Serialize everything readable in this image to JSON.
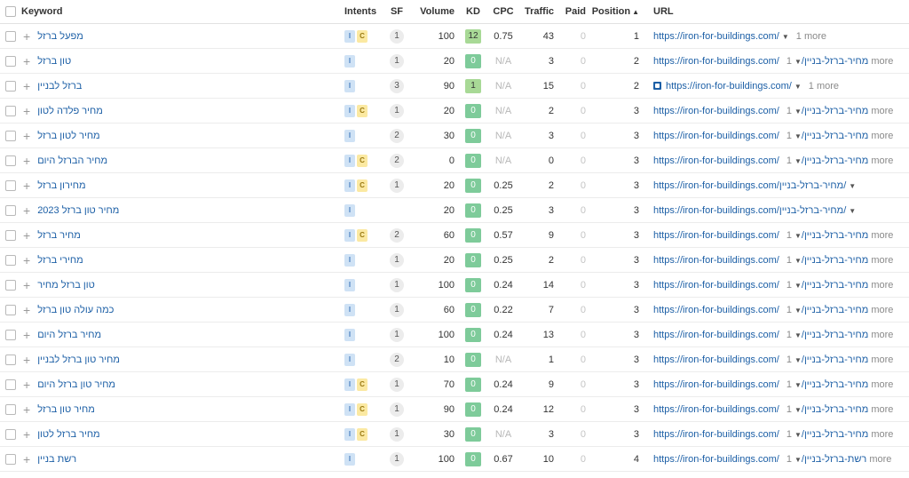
{
  "columns": {
    "keyword": "Keyword",
    "intents": "Intents",
    "sf": "SF",
    "volume": "Volume",
    "kd": "KD",
    "cpc": "CPC",
    "traffic": "Traffic",
    "paid": "Paid",
    "position": "Position",
    "url": "URL"
  },
  "sort_indicator": "▲",
  "colors": {
    "link": "#1c5fa6",
    "kd_green": "#7ecb9a",
    "intent_informational": "#cfe2f5",
    "intent_commercial": "#fbe9a2"
  },
  "rows": [
    {
      "keyword": "מפעל ברזל",
      "intents": [
        "I",
        "C"
      ],
      "sf": "1",
      "volume": "100",
      "kd": "12",
      "cpc": "0.75",
      "traffic": "43",
      "paid": "0",
      "position": "1",
      "url": "https://iron-for-buildings.com/",
      "more": "1 more",
      "icon": false
    },
    {
      "keyword": "טון ברזל",
      "intents": [
        "I"
      ],
      "sf": "1",
      "volume": "20",
      "kd": "0",
      "cpc": "N/A",
      "traffic": "3",
      "paid": "0",
      "position": "2",
      "url": "https://iron-for-buildings.com/מחיר-ברזל-בניין/",
      "more": "1 more",
      "icon": false
    },
    {
      "keyword": "ברזל לבניין",
      "intents": [
        "I"
      ],
      "sf": "3",
      "volume": "90",
      "kd": "1",
      "cpc": "N/A",
      "traffic": "15",
      "paid": "0",
      "position": "2",
      "url": "https://iron-for-buildings.com/",
      "more": "1 more",
      "icon": true
    },
    {
      "keyword": "מחיר פלדה לטון",
      "intents": [
        "I",
        "C"
      ],
      "sf": "1",
      "volume": "20",
      "kd": "0",
      "cpc": "N/A",
      "traffic": "2",
      "paid": "0",
      "position": "3",
      "url": "https://iron-for-buildings.com/מחיר-ברזל-בניין/",
      "more": "1 more",
      "icon": false
    },
    {
      "keyword": "מחיר לטון ברזל",
      "intents": [
        "I"
      ],
      "sf": "2",
      "volume": "30",
      "kd": "0",
      "cpc": "N/A",
      "traffic": "3",
      "paid": "0",
      "position": "3",
      "url": "https://iron-for-buildings.com/מחיר-ברזל-בניין/",
      "more": "1 more",
      "icon": false
    },
    {
      "keyword": "מחיר הברזל היום",
      "intents": [
        "I",
        "C"
      ],
      "sf": "2",
      "volume": "0",
      "kd": "0",
      "cpc": "N/A",
      "traffic": "0",
      "paid": "0",
      "position": "3",
      "url": "https://iron-for-buildings.com/מחיר-ברזל-בניין/",
      "more": "1 more",
      "icon": false
    },
    {
      "keyword": "מחירון ברזל",
      "intents": [
        "I",
        "C"
      ],
      "sf": "1",
      "volume": "20",
      "kd": "0",
      "cpc": "0.25",
      "traffic": "2",
      "paid": "0",
      "position": "3",
      "url": "https://iron-for-buildings.com/מחיר-ברזל-בניין/",
      "more": "",
      "icon": false
    },
    {
      "keyword": "מחיר טון ברזל 2023",
      "intents": [
        "I"
      ],
      "sf": "",
      "volume": "20",
      "kd": "0",
      "cpc": "0.25",
      "traffic": "3",
      "paid": "0",
      "position": "3",
      "url": "https://iron-for-buildings.com/מחיר-ברזל-בניין/",
      "more": "",
      "icon": false
    },
    {
      "keyword": "מחיר ברזל",
      "intents": [
        "I",
        "C"
      ],
      "sf": "2",
      "volume": "60",
      "kd": "0",
      "cpc": "0.57",
      "traffic": "9",
      "paid": "0",
      "position": "3",
      "url": "https://iron-for-buildings.com/מחיר-ברזל-בניין/",
      "more": "1 more",
      "icon": false
    },
    {
      "keyword": "מחירי ברזל",
      "intents": [
        "I"
      ],
      "sf": "1",
      "volume": "20",
      "kd": "0",
      "cpc": "0.25",
      "traffic": "2",
      "paid": "0",
      "position": "3",
      "url": "https://iron-for-buildings.com/מחיר-ברזל-בניין/",
      "more": "1 more",
      "icon": false
    },
    {
      "keyword": "טון ברזל מחיר",
      "intents": [
        "I"
      ],
      "sf": "1",
      "volume": "100",
      "kd": "0",
      "cpc": "0.24",
      "traffic": "14",
      "paid": "0",
      "position": "3",
      "url": "https://iron-for-buildings.com/מחיר-ברזל-בניין/",
      "more": "1 more",
      "icon": false
    },
    {
      "keyword": "כמה עולה טון ברזל",
      "intents": [
        "I"
      ],
      "sf": "1",
      "volume": "60",
      "kd": "0",
      "cpc": "0.22",
      "traffic": "7",
      "paid": "0",
      "position": "3",
      "url": "https://iron-for-buildings.com/מחיר-ברזל-בניין/",
      "more": "1 more",
      "icon": false
    },
    {
      "keyword": "מחיר ברזל היום",
      "intents": [
        "I"
      ],
      "sf": "1",
      "volume": "100",
      "kd": "0",
      "cpc": "0.24",
      "traffic": "13",
      "paid": "0",
      "position": "3",
      "url": "https://iron-for-buildings.com/מחיר-ברזל-בניין/",
      "more": "1 more",
      "icon": false
    },
    {
      "keyword": "מחיר טון ברזל לבניין",
      "intents": [
        "I"
      ],
      "sf": "2",
      "volume": "10",
      "kd": "0",
      "cpc": "N/A",
      "traffic": "1",
      "paid": "0",
      "position": "3",
      "url": "https://iron-for-buildings.com/מחיר-ברזל-בניין/",
      "more": "1 more",
      "icon": false
    },
    {
      "keyword": "מחיר טון ברזל היום",
      "intents": [
        "I",
        "C"
      ],
      "sf": "1",
      "volume": "70",
      "kd": "0",
      "cpc": "0.24",
      "traffic": "9",
      "paid": "0",
      "position": "3",
      "url": "https://iron-for-buildings.com/מחיר-ברזל-בניין/",
      "more": "1 more",
      "icon": false
    },
    {
      "keyword": "מחיר טון ברזל",
      "intents": [
        "I",
        "C"
      ],
      "sf": "1",
      "volume": "90",
      "kd": "0",
      "cpc": "0.24",
      "traffic": "12",
      "paid": "0",
      "position": "3",
      "url": "https://iron-for-buildings.com/מחיר-ברזל-בניין/",
      "more": "1 more",
      "icon": false
    },
    {
      "keyword": "מחיר ברזל לטון",
      "intents": [
        "I",
        "C"
      ],
      "sf": "1",
      "volume": "30",
      "kd": "0",
      "cpc": "N/A",
      "traffic": "3",
      "paid": "0",
      "position": "3",
      "url": "https://iron-for-buildings.com/מחיר-ברזל-בניין/",
      "more": "1 more",
      "icon": false
    },
    {
      "keyword": "רשת בניין",
      "intents": [
        "I"
      ],
      "sf": "1",
      "volume": "100",
      "kd": "0",
      "cpc": "0.67",
      "traffic": "10",
      "paid": "0",
      "position": "4",
      "url": "https://iron-for-buildings.com/רשת-ברזל-בניין/",
      "more": "1 more",
      "icon": false
    }
  ]
}
